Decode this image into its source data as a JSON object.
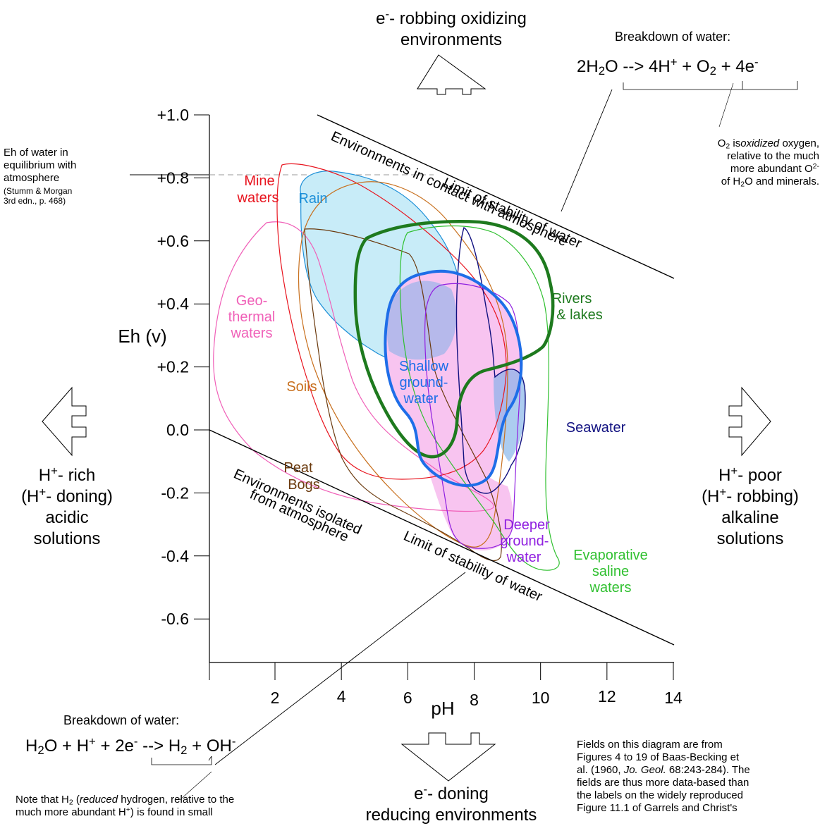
{
  "top": {
    "electron": "e",
    "electron_sup": "-",
    "line1_rest": "- robbing oxidizing",
    "line2": "environments"
  },
  "bottom": {
    "electron": "e",
    "electron_sup": "-",
    "line1_rest": "- doning",
    "line2": "reducing environments"
  },
  "left": {
    "h1": "H",
    "sup1": "+",
    "rest1": "- rich",
    "open2": "(H",
    "sup2": "+",
    "rest2": "- doning)",
    "line3": "acidic",
    "line4": "solutions"
  },
  "right": {
    "h1": "H",
    "sup1": "+",
    "rest1": "- poor",
    "open2": "(H",
    "sup2": "+",
    "rest2": "- robbing)",
    "line3": "alkaline",
    "line4": "solutions"
  },
  "breakdown_top": {
    "title": "Breakdown of water:",
    "eq": {
      "p1": "2H",
      "s1": "2",
      "p2": "O -->  4H",
      "s2": "+",
      "p3": " + O",
      "s3": "2",
      "p4": " + 4e",
      "s4": "-"
    },
    "note": {
      "o": "O",
      "o_sub": "2",
      "is": " is",
      "oxidized": "oxidized",
      "oxygen": " oxygen,",
      "line2": "relative to the much",
      "line3a": "more abundant O",
      "line3_sup": "2-",
      "line4a": "of H",
      "line4_sub": "2",
      "line4b": "O and minerals."
    }
  },
  "breakdown_bottom": {
    "title": "Breakdown of water:",
    "eq": {
      "p1": "H",
      "s1": "2",
      "p2": "O + H",
      "s2": "+",
      "p3": " + 2e",
      "s3": "-",
      "p4": " --> H",
      "s4": "2",
      "p5": " + OH",
      "s5": "-"
    },
    "note": {
      "a": "Note that H",
      "a_sub": "2",
      "b": " (",
      "reduced": "reduced",
      "c": " hydrogen, relative to the",
      "line2a": "much more abundant H",
      "line2_sup": "+",
      "line2b": ") is found in small"
    }
  },
  "eh_note": {
    "line1": "Eh of water in",
    "line2": "equilibrium with",
    "line3": "atmosphere",
    "line4": "(Stumm & Morgan",
    "line5": "3rd edn., p. 468)"
  },
  "fields_note": {
    "line1": "Fields on this diagram are from",
    "line2": "Figures 4 to 19 of  Baas-Becking et",
    "line3a": "al. (1960, ",
    "journal": "Jo. Geol.",
    "line3b": " 68:243-284).  The",
    "line4": "fields are thus more data-based than",
    "line5": "the labels on the widely reproduced",
    "line6": "Figure 11.1 of Garrels and Christ's"
  },
  "chart_data": {
    "type": "diagram",
    "xlabel": "pH",
    "ylabel": "Eh (v)",
    "xlim": [
      0,
      14
    ],
    "ylim": [
      -0.7,
      1.0
    ],
    "x_ticks": [
      {
        "value": 2,
        "label": "2"
      },
      {
        "value": 4,
        "label": "4"
      },
      {
        "value": 6,
        "label": "6"
      },
      {
        "value": 8,
        "label": "8"
      },
      {
        "value": 10,
        "label": "10"
      },
      {
        "value": 12,
        "label": "12"
      },
      {
        "value": 14,
        "label": "14"
      }
    ],
    "y_ticks": [
      {
        "value": 1.0,
        "label": "+1.0"
      },
      {
        "value": 0.8,
        "label": "+0.8"
      },
      {
        "value": 0.6,
        "label": "+0.6"
      },
      {
        "value": 0.4,
        "label": "+0.4"
      },
      {
        "value": 0.2,
        "label": "+0.2"
      },
      {
        "value": 0.0,
        "label": "0.0"
      },
      {
        "value": -0.2,
        "label": "-0.2"
      },
      {
        "value": -0.4,
        "label": "-0.4"
      },
      {
        "value": -0.6,
        "label": "-0.6"
      }
    ],
    "boundary_lines": [
      {
        "label": "Limit of stability of water",
        "points": [
          [
            3.3,
            1.0
          ],
          [
            14,
            0.48
          ]
        ]
      },
      {
        "label": "Limit of stability of water",
        "points": [
          [
            0,
            0.0
          ],
          [
            14,
            -0.69
          ]
        ]
      }
    ],
    "atmosphere_eh": 0.81,
    "zone_labels": [
      "Environments in contact with atmosphere",
      "Environments isolated",
      "from atmosphere"
    ],
    "fields": [
      {
        "name": [
          "Mine",
          "waters"
        ],
        "color": "#e8141e",
        "fill": "none"
      },
      {
        "name": [
          "Rain"
        ],
        "color": "#1e90d8",
        "fill": "#c8ecf8"
      },
      {
        "name": [
          "Geo-",
          "thermal",
          "waters"
        ],
        "color": "#f060b8",
        "fill": "none"
      },
      {
        "name": [
          "Soils"
        ],
        "color": "#c8701e",
        "fill": "none"
      },
      {
        "name": [
          "Peat",
          "Bogs"
        ],
        "color": "#6b3a0e",
        "fill": "none"
      },
      {
        "name": [
          "Rivers",
          "& lakes"
        ],
        "color": "#1e7a1e",
        "fill": "none"
      },
      {
        "name": [
          "Shallow",
          "ground-",
          "water"
        ],
        "color": "#1e6ee8",
        "fill": "#f8c4f0"
      },
      {
        "name": [
          "Seawater"
        ],
        "color": "#101080",
        "fill": "none"
      },
      {
        "name": [
          "Deeper",
          "ground-",
          "water"
        ],
        "color": "#9020e0",
        "fill": "none"
      },
      {
        "name": [
          "Evaporative",
          "saline",
          "waters"
        ],
        "color": "#30c030",
        "fill": "none"
      }
    ]
  }
}
